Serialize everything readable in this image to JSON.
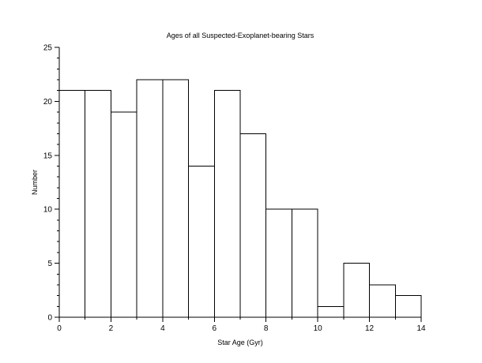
{
  "chart_data": {
    "type": "bar",
    "title": "Ages of all Suspected-Exoplanet-bearing Stars",
    "xlabel": "Star Age (Gyr)",
    "ylabel": "Number",
    "bin_edges": [
      0,
      1,
      2,
      3,
      4,
      5,
      6,
      7,
      8,
      9,
      10,
      11,
      12,
      13,
      14
    ],
    "values": [
      21,
      21,
      19,
      22,
      22,
      14,
      21,
      17,
      10,
      10,
      1,
      5,
      3,
      2
    ],
    "xlim": [
      0,
      14
    ],
    "ylim": [
      0,
      25
    ],
    "x_ticks": [
      0,
      2,
      4,
      6,
      8,
      10,
      12,
      14
    ],
    "y_ticks": [
      0,
      5,
      10,
      15,
      20,
      25
    ],
    "x_minor_ticks": [
      1,
      3,
      5,
      7,
      9,
      11,
      13
    ],
    "y_minor_ticks": [
      1,
      2,
      3,
      4,
      6,
      7,
      8,
      9,
      11,
      12,
      13,
      14,
      16,
      17,
      18,
      19,
      21,
      22,
      23,
      24
    ],
    "grid": false,
    "legend": "none",
    "bar_fill": "#ffffff",
    "bar_edge": "#000000"
  }
}
